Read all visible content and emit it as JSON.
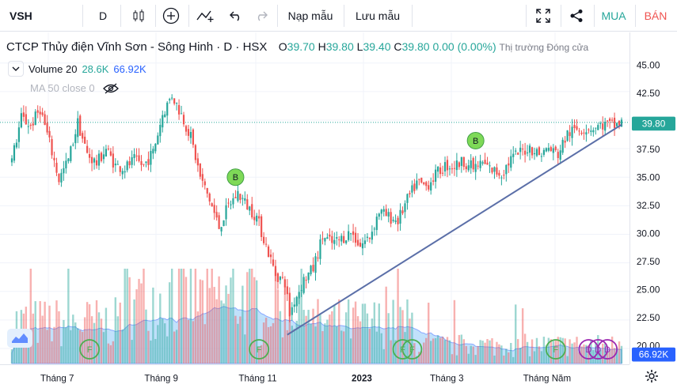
{
  "toolbar": {
    "symbol": "VSH",
    "interval": "D",
    "indicators_label": "Nạp mẫu",
    "save_label": "Lưu mẫu",
    "buy_label": "MUA",
    "sell_label": "BÁN"
  },
  "legend": {
    "title": "CTCP Thủy điện Vĩnh Sơn - Sông Hinh · D · HSX",
    "o_label": "O",
    "o": "39.70",
    "h_label": "H",
    "h": "39.80",
    "l_label": "L",
    "l": "39.40",
    "c_label": "C",
    "c": "39.80",
    "change": "0.00 (0.00%)",
    "market_status": "Thị trường Đóng cửa",
    "volume_label": "Volume 20",
    "volume_value": "28.6K",
    "volume_ma_value": "66.92K",
    "ma_label": "MA 50 close 0"
  },
  "colors": {
    "up": "#26a69a",
    "down": "#ef5350",
    "trendline": "#5b6fa8",
    "volume_ma_fill": "#90caf9",
    "marker_b": "#7ed957",
    "marker_f": "#4caf50",
    "marker_d": "#9c27b0",
    "last_price_bg": "#26a69a",
    "volume_label_bg": "#2962ff"
  },
  "chart_data": {
    "type": "candlestick",
    "symbol": "VSH",
    "yaxis_ticks": [
      "45.00",
      "42.50",
      "40.00",
      "37.50",
      "35.00",
      "32.50",
      "30.00",
      "27.50",
      "25.00",
      "22.50",
      "20.00"
    ],
    "ylim": [
      19.5,
      46.2
    ],
    "xaxis_ticks": [
      "Tháng 7",
      "Tháng 9",
      "Tháng 11",
      "2023",
      "Tháng 3",
      "Tháng Năm"
    ],
    "last_price": "39.80",
    "volume_ma_last": "66.92K",
    "close_path": [
      {
        "i": 0,
        "p": 36.5
      },
      {
        "i": 4,
        "p": 40.2
      },
      {
        "i": 8,
        "p": 39.5
      },
      {
        "i": 12,
        "p": 41.0
      },
      {
        "i": 16,
        "p": 38.0
      },
      {
        "i": 20,
        "p": 34.8
      },
      {
        "i": 24,
        "p": 36.5
      },
      {
        "i": 28,
        "p": 39.8
      },
      {
        "i": 32,
        "p": 37.0
      },
      {
        "i": 36,
        "p": 36.2
      },
      {
        "i": 40,
        "p": 37.5
      },
      {
        "i": 44,
        "p": 36.0
      },
      {
        "i": 48,
        "p": 35.8
      },
      {
        "i": 52,
        "p": 36.5
      },
      {
        "i": 56,
        "p": 36.0
      },
      {
        "i": 60,
        "p": 37.2
      },
      {
        "i": 64,
        "p": 40.5
      },
      {
        "i": 68,
        "p": 42.2
      },
      {
        "i": 72,
        "p": 40.5
      },
      {
        "i": 76,
        "p": 38.5
      },
      {
        "i": 80,
        "p": 35.0
      },
      {
        "i": 84,
        "p": 33.0
      },
      {
        "i": 88,
        "p": 30.6
      },
      {
        "i": 92,
        "p": 32.5
      },
      {
        "i": 96,
        "p": 33.6
      },
      {
        "i": 100,
        "p": 32.5
      },
      {
        "i": 104,
        "p": 31.5
      },
      {
        "i": 108,
        "p": 29.0
      },
      {
        "i": 112,
        "p": 26.5
      },
      {
        "i": 116,
        "p": 25.8
      },
      {
        "i": 118,
        "p": 23.0
      },
      {
        "i": 120,
        "p": 24.2
      },
      {
        "i": 124,
        "p": 26.0
      },
      {
        "i": 128,
        "p": 27.0
      },
      {
        "i": 132,
        "p": 29.8
      },
      {
        "i": 136,
        "p": 29.2
      },
      {
        "i": 140,
        "p": 29.6
      },
      {
        "i": 144,
        "p": 30.2
      },
      {
        "i": 148,
        "p": 29.0
      },
      {
        "i": 152,
        "p": 29.8
      },
      {
        "i": 156,
        "p": 32.0
      },
      {
        "i": 160,
        "p": 31.5
      },
      {
        "i": 164,
        "p": 31.2
      },
      {
        "i": 168,
        "p": 33.0
      },
      {
        "i": 172,
        "p": 34.5
      },
      {
        "i": 176,
        "p": 34.2
      },
      {
        "i": 180,
        "p": 35.2
      },
      {
        "i": 184,
        "p": 36.0
      },
      {
        "i": 188,
        "p": 36.0
      },
      {
        "i": 192,
        "p": 36.4
      },
      {
        "i": 196,
        "p": 35.8
      },
      {
        "i": 200,
        "p": 36.2
      },
      {
        "i": 204,
        "p": 35.6
      },
      {
        "i": 208,
        "p": 35.3
      },
      {
        "i": 212,
        "p": 36.6
      },
      {
        "i": 216,
        "p": 37.2
      },
      {
        "i": 220,
        "p": 37.6
      },
      {
        "i": 224,
        "p": 37.0
      },
      {
        "i": 228,
        "p": 37.5
      },
      {
        "i": 232,
        "p": 37.0
      },
      {
        "i": 236,
        "p": 38.8
      },
      {
        "i": 240,
        "p": 39.2
      },
      {
        "i": 244,
        "p": 39.3
      },
      {
        "i": 248,
        "p": 39.4
      },
      {
        "i": 252,
        "p": 39.6
      },
      {
        "i": 256,
        "p": 39.5
      },
      {
        "i": 259,
        "p": 39.8
      }
    ],
    "trendline": [
      {
        "i": 117,
        "p": 21.2
      },
      {
        "i": 259,
        "p": 39.6
      }
    ],
    "markers": [
      {
        "i": 95,
        "p": 35.0,
        "label": "B",
        "kind": "buy"
      },
      {
        "i": 197,
        "p": 38.2,
        "label": "B",
        "kind": "buy"
      }
    ],
    "events": [
      {
        "i": 33,
        "label": "F"
      },
      {
        "i": 105,
        "label": "F"
      },
      {
        "i": 166,
        "label": "F"
      },
      {
        "i": 170,
        "label": "F"
      },
      {
        "i": 231,
        "label": "F"
      },
      {
        "i": 245,
        "label": "D"
      },
      {
        "i": 249,
        "label": "D"
      },
      {
        "i": 253,
        "label": "D"
      }
    ]
  }
}
